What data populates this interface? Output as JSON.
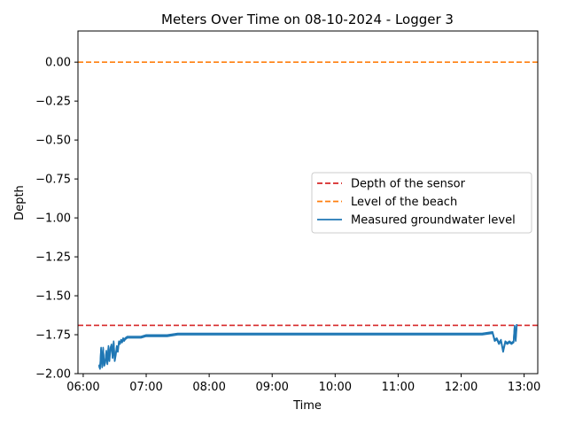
{
  "chart_data": {
    "type": "line",
    "title": "Meters Over Time on 08-10-2024 - Logger 3",
    "xlabel": "Time",
    "ylabel": "Depth",
    "xlim": [
      "05:55",
      "13:13"
    ],
    "ylim": [
      -2.0,
      0.2
    ],
    "xticks": [
      "06:00",
      "07:00",
      "08:00",
      "09:00",
      "10:00",
      "11:00",
      "12:00",
      "13:00"
    ],
    "yticks": [
      0.0,
      -0.25,
      -0.5,
      -0.75,
      -1.0,
      -1.25,
      -1.5,
      -1.75,
      -2.0
    ],
    "ytick_labels": [
      "0.00",
      "−0.25",
      "−0.50",
      "−0.75",
      "−1.00",
      "−1.25",
      "−1.50",
      "−1.75",
      "−2.00"
    ],
    "grid": false,
    "legend_position": "center-right",
    "reference_lines": [
      {
        "name": "Depth of the sensor",
        "y": -1.69,
        "color": "#d62728",
        "style": "dashed"
      },
      {
        "name": "Level of the beach",
        "y": 0.0,
        "color": "#ff7f0e",
        "style": "dashed"
      }
    ],
    "series": [
      {
        "name": "Measured groundwater level",
        "color": "#1f77b4",
        "x": [
          "06:15",
          "06:16",
          "06:17",
          "06:18",
          "06:19",
          "06:20",
          "06:21",
          "06:22",
          "06:23",
          "06:24",
          "06:25",
          "06:26",
          "06:27",
          "06:28",
          "06:29",
          "06:30",
          "06:31",
          "06:32",
          "06:33",
          "06:34",
          "06:35",
          "06:36",
          "06:37",
          "06:38",
          "06:39",
          "06:40",
          "06:42",
          "06:45",
          "06:50",
          "06:55",
          "07:00",
          "07:10",
          "07:20",
          "07:30",
          "08:00",
          "09:00",
          "10:00",
          "11:00",
          "12:00",
          "12:20",
          "12:30",
          "12:32",
          "12:34",
          "12:36",
          "12:38",
          "12:40",
          "12:42",
          "12:44",
          "12:46",
          "12:48",
          "12:50",
          "12:51",
          "12:52",
          "12:53"
        ],
        "y": [
          -1.95,
          -1.97,
          -1.84,
          -1.96,
          -1.84,
          -1.95,
          -1.93,
          -1.86,
          -1.94,
          -1.83,
          -1.92,
          -1.84,
          -1.82,
          -1.9,
          -1.8,
          -1.92,
          -1.88,
          -1.83,
          -1.86,
          -1.8,
          -1.81,
          -1.79,
          -1.8,
          -1.78,
          -1.79,
          -1.78,
          -1.77,
          -1.77,
          -1.77,
          -1.77,
          -1.76,
          -1.76,
          -1.76,
          -1.75,
          -1.75,
          -1.75,
          -1.75,
          -1.75,
          -1.75,
          -1.75,
          -1.74,
          -1.79,
          -1.78,
          -1.81,
          -1.79,
          -1.86,
          -1.8,
          -1.81,
          -1.8,
          -1.81,
          -1.8,
          -1.7,
          -1.79,
          -1.69
        ]
      }
    ]
  }
}
